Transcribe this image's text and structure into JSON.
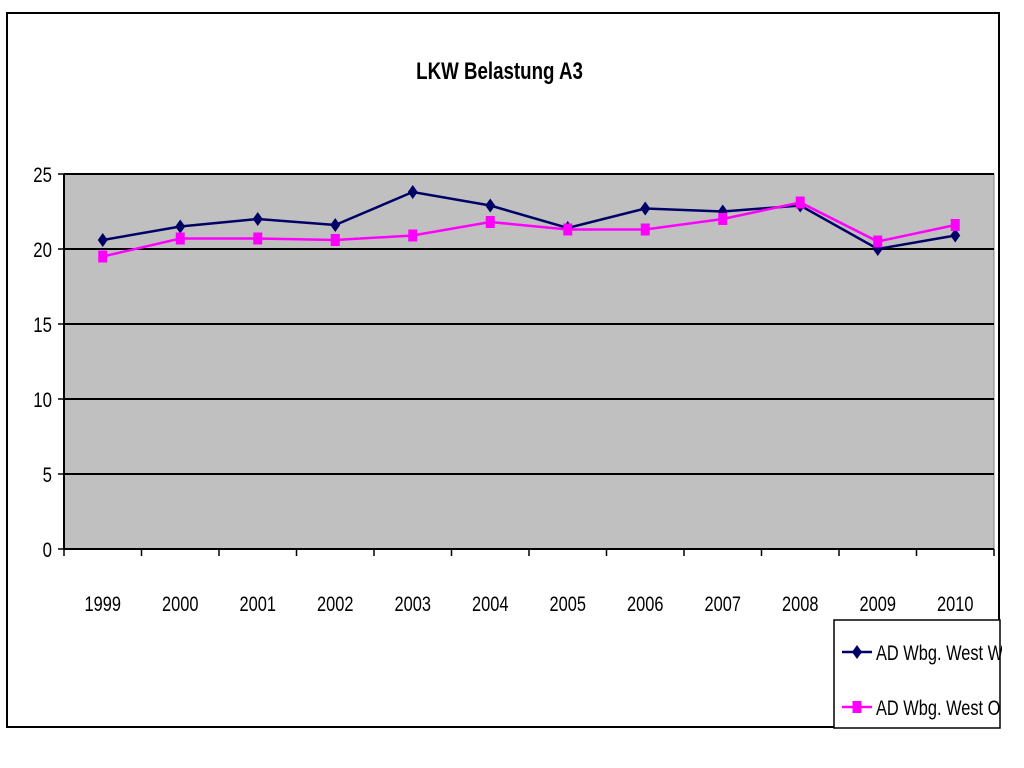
{
  "chart_data": {
    "type": "line",
    "title": "LKW Belastung A3",
    "categories": [
      "1999",
      "2000",
      "2001",
      "2002",
      "2003",
      "2004",
      "2005",
      "2006",
      "2007",
      "2008",
      "2009",
      "2010"
    ],
    "ylim": [
      0,
      25
    ],
    "yticks": [
      0,
      5,
      10,
      15,
      20,
      25
    ],
    "grid": true,
    "legend_position": "bottom-right",
    "series": [
      {
        "name": "AD Wbg. West W",
        "color": "#000066",
        "marker": "diamond",
        "values": [
          20.6,
          21.5,
          22.0,
          21.6,
          23.8,
          22.9,
          21.4,
          22.7,
          22.5,
          22.9,
          20.0,
          20.9
        ]
      },
      {
        "name": "AD Wbg. West O",
        "color": "#ff00ff",
        "marker": "square",
        "values": [
          19.5,
          20.7,
          20.7,
          20.6,
          20.9,
          21.8,
          21.3,
          21.3,
          22.0,
          23.1,
          20.5,
          21.6
        ]
      }
    ],
    "plot_background": "#c0c0c0"
  }
}
